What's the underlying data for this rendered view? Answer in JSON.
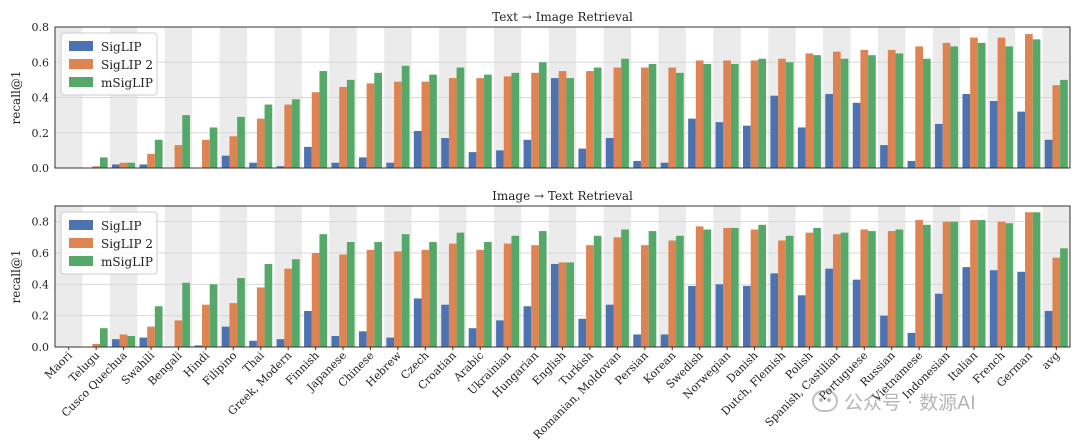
{
  "colors": {
    "SigLIP": "#4c72b0",
    "SigLIP 2": "#dd8452",
    "mSigLIP": "#55a868",
    "band": "#ebebeb",
    "grid": "#d8d8d8"
  },
  "watermark": "公众号 · 数源AI",
  "chart_data": [
    {
      "type": "bar",
      "title": "Text → Image Retrieval",
      "xlabel": "",
      "ylabel": "recall@1",
      "ylim": [
        0,
        0.8
      ],
      "yticks": [
        "0.0",
        "0.2",
        "0.4",
        "0.6",
        "0.8"
      ],
      "legend_position": "top-left",
      "categories": [
        "Maori",
        "Telugu",
        "Cusco Quechua",
        "Swahili",
        "Bengali",
        "Hindi",
        "Filipino",
        "Thai",
        "Greek, Modern",
        "Finnish",
        "Japanese",
        "Chinese",
        "Hebrew",
        "Czech",
        "Croatian",
        "Arabic",
        "Ukrainian",
        "Hungarian",
        "English",
        "Turkish",
        "Romanian, Moldovan",
        "Persian",
        "Korean",
        "Swedish",
        "Norwegian",
        "Danish",
        "Dutch, Flemish",
        "Polish",
        "Spanish, Castilian",
        "Portuguese",
        "Russian",
        "Vietnamese",
        "Indonesian",
        "Italian",
        "French",
        "German",
        "avg"
      ],
      "series": [
        {
          "name": "SigLIP",
          "values": [
            0.0,
            0.0,
            0.02,
            0.02,
            0.0,
            0.0,
            0.07,
            0.03,
            0.01,
            0.12,
            0.03,
            0.06,
            0.03,
            0.21,
            0.17,
            0.09,
            0.1,
            0.16,
            0.51,
            0.11,
            0.17,
            0.04,
            0.03,
            0.28,
            0.26,
            0.24,
            0.41,
            0.23,
            0.42,
            0.37,
            0.13,
            0.04,
            0.25,
            0.42,
            0.38,
            0.32,
            0.16
          ]
        },
        {
          "name": "SigLIP 2",
          "values": [
            0.0,
            0.01,
            0.03,
            0.08,
            0.13,
            0.16,
            0.18,
            0.28,
            0.36,
            0.43,
            0.46,
            0.48,
            0.49,
            0.49,
            0.51,
            0.51,
            0.52,
            0.54,
            0.55,
            0.55,
            0.57,
            0.57,
            0.57,
            0.61,
            0.61,
            0.61,
            0.62,
            0.65,
            0.66,
            0.67,
            0.67,
            0.69,
            0.71,
            0.74,
            0.74,
            0.76,
            0.47
          ]
        },
        {
          "name": "mSigLIP",
          "values": [
            0.0,
            0.06,
            0.03,
            0.16,
            0.3,
            0.23,
            0.29,
            0.36,
            0.39,
            0.55,
            0.5,
            0.54,
            0.58,
            0.53,
            0.57,
            0.53,
            0.54,
            0.6,
            0.51,
            0.57,
            0.62,
            0.59,
            0.54,
            0.59,
            0.59,
            0.62,
            0.6,
            0.64,
            0.62,
            0.64,
            0.65,
            0.62,
            0.69,
            0.71,
            0.69,
            0.73,
            0.5
          ]
        }
      ]
    },
    {
      "type": "bar",
      "title": "Image → Text Retrieval",
      "xlabel": "",
      "ylabel": "recall@1",
      "ylim": [
        0,
        0.9
      ],
      "yticks": [
        "0.0",
        "0.2",
        "0.4",
        "0.6",
        "0.8"
      ],
      "legend_position": "top-left",
      "categories": [
        "Maori",
        "Telugu",
        "Cusco Quechua",
        "Swahili",
        "Bengali",
        "Hindi",
        "Filipino",
        "Thai",
        "Greek, Modern",
        "Finnish",
        "Japanese",
        "Chinese",
        "Hebrew",
        "Czech",
        "Croatian",
        "Arabic",
        "Ukrainian",
        "Hungarian",
        "English",
        "Turkish",
        "Romanian, Moldovan",
        "Persian",
        "Korean",
        "Swedish",
        "Norwegian",
        "Danish",
        "Dutch, Flemish",
        "Polish",
        "Spanish, Castilian",
        "Portuguese",
        "Russian",
        "Vietnamese",
        "Indonesian",
        "Italian",
        "French",
        "German",
        "avg"
      ],
      "series": [
        {
          "name": "SigLIP",
          "values": [
            0.0,
            0.0,
            0.05,
            0.06,
            0.0,
            0.01,
            0.13,
            0.04,
            0.05,
            0.23,
            0.07,
            0.1,
            0.06,
            0.31,
            0.27,
            0.12,
            0.17,
            0.26,
            0.53,
            0.18,
            0.27,
            0.08,
            0.08,
            0.39,
            0.4,
            0.39,
            0.47,
            0.33,
            0.5,
            0.43,
            0.2,
            0.09,
            0.34,
            0.51,
            0.49,
            0.48,
            0.23
          ]
        },
        {
          "name": "SigLIP 2",
          "values": [
            0.0,
            0.02,
            0.08,
            0.13,
            0.17,
            0.27,
            0.28,
            0.38,
            0.5,
            0.6,
            0.59,
            0.62,
            0.61,
            0.62,
            0.66,
            0.62,
            0.66,
            0.65,
            0.54,
            0.65,
            0.7,
            0.65,
            0.68,
            0.77,
            0.76,
            0.75,
            0.68,
            0.73,
            0.72,
            0.75,
            0.74,
            0.81,
            0.8,
            0.81,
            0.8,
            0.86,
            0.57
          ]
        },
        {
          "name": "mSigLIP",
          "values": [
            0.0,
            0.12,
            0.07,
            0.26,
            0.41,
            0.4,
            0.44,
            0.53,
            0.56,
            0.72,
            0.67,
            0.67,
            0.72,
            0.67,
            0.73,
            0.67,
            0.71,
            0.74,
            0.54,
            0.71,
            0.75,
            0.74,
            0.71,
            0.75,
            0.76,
            0.78,
            0.71,
            0.76,
            0.73,
            0.74,
            0.75,
            0.78,
            0.8,
            0.81,
            0.79,
            0.86,
            0.63
          ]
        }
      ]
    }
  ]
}
